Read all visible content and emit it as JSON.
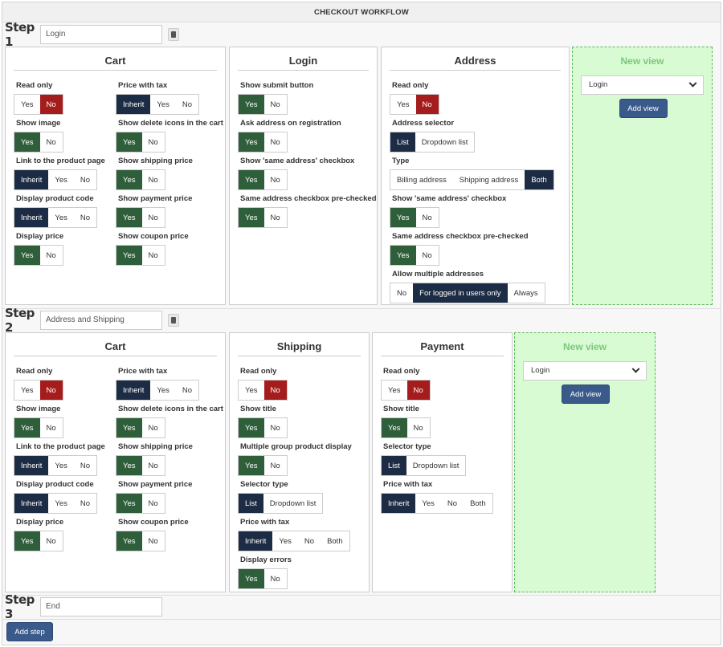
{
  "title": "CHECKOUT WORKFLOW",
  "steps": [
    {
      "label": "Step 1",
      "name": "Login",
      "panels": {
        "cart": {
          "title": "Cart",
          "options": {
            "read_only": {
              "label": "Read only",
              "choices": [
                "Yes",
                "No"
              ]
            },
            "price_with_tax": {
              "label": "Price with tax",
              "choices": [
                "Inherit",
                "Yes",
                "No"
              ]
            },
            "show_image": {
              "label": "Show image",
              "choices": [
                "Yes",
                "No"
              ]
            },
            "show_delete_icons": {
              "label": "Show delete icons in the cart",
              "choices": [
                "Yes",
                "No"
              ]
            },
            "link_product_page": {
              "label": "Link to the product page",
              "choices": [
                "Inherit",
                "Yes",
                "No"
              ]
            },
            "show_shipping_price": {
              "label": "Show shipping price",
              "choices": [
                "Yes",
                "No"
              ]
            },
            "display_product_code": {
              "label": "Display product code",
              "choices": [
                "Inherit",
                "Yes",
                "No"
              ]
            },
            "show_payment_price": {
              "label": "Show payment price",
              "choices": [
                "Yes",
                "No"
              ]
            },
            "display_price": {
              "label": "Display price",
              "choices": [
                "Yes",
                "No"
              ]
            },
            "show_coupon_price": {
              "label": "Show coupon price",
              "choices": [
                "Yes",
                "No"
              ]
            }
          }
        },
        "login": {
          "title": "Login",
          "options": {
            "show_submit_button": {
              "label": "Show submit button",
              "choices": [
                "Yes",
                "No"
              ]
            },
            "ask_address": {
              "label": "Ask address on registration",
              "choices": [
                "Yes",
                "No"
              ]
            },
            "show_same_address": {
              "label": "Show 'same address' checkbox",
              "choices": [
                "Yes",
                "No"
              ]
            },
            "same_address_prechecked": {
              "label": "Same address checkbox pre-checked",
              "choices": [
                "Yes",
                "No"
              ]
            }
          }
        },
        "address": {
          "title": "Address",
          "options": {
            "read_only": {
              "label": "Read only",
              "choices": [
                "Yes",
                "No"
              ]
            },
            "address_selector": {
              "label": "Address selector",
              "choices": [
                "List",
                "Dropdown list"
              ]
            },
            "type": {
              "label": "Type",
              "choices": [
                "Billing address",
                "Shipping address",
                "Both"
              ]
            },
            "show_same_address": {
              "label": "Show 'same address' checkbox",
              "choices": [
                "Yes",
                "No"
              ]
            },
            "same_address_prechecked": {
              "label": "Same address checkbox pre-checked",
              "choices": [
                "Yes",
                "No"
              ]
            },
            "allow_multiple": {
              "label": "Allow multiple addresses",
              "choices": [
                "No",
                "For logged in users only",
                "Always"
              ]
            }
          }
        },
        "new_view": {
          "title": "New view",
          "select_value": "Login",
          "button": "Add view"
        }
      }
    },
    {
      "label": "Step 2",
      "name": "Address and Shipping",
      "panels": {
        "cart": {
          "title": "Cart",
          "options": {
            "read_only": {
              "label": "Read only",
              "choices": [
                "Yes",
                "No"
              ]
            },
            "price_with_tax": {
              "label": "Price with tax",
              "choices": [
                "Inherit",
                "Yes",
                "No"
              ]
            },
            "show_image": {
              "label": "Show image",
              "choices": [
                "Yes",
                "No"
              ]
            },
            "show_delete_icons": {
              "label": "Show delete icons in the cart",
              "choices": [
                "Yes",
                "No"
              ]
            },
            "link_product_page": {
              "label": "Link to the product page",
              "choices": [
                "Inherit",
                "Yes",
                "No"
              ]
            },
            "show_shipping_price": {
              "label": "Show shipping price",
              "choices": [
                "Yes",
                "No"
              ]
            },
            "display_product_code": {
              "label": "Display product code",
              "choices": [
                "Inherit",
                "Yes",
                "No"
              ]
            },
            "show_payment_price": {
              "label": "Show payment price",
              "choices": [
                "Yes",
                "No"
              ]
            },
            "display_price": {
              "label": "Display price",
              "choices": [
                "Yes",
                "No"
              ]
            },
            "show_coupon_price": {
              "label": "Show coupon price",
              "choices": [
                "Yes",
                "No"
              ]
            }
          }
        },
        "shipping": {
          "title": "Shipping",
          "options": {
            "read_only": {
              "label": "Read only",
              "choices": [
                "Yes",
                "No"
              ]
            },
            "show_title": {
              "label": "Show title",
              "choices": [
                "Yes",
                "No"
              ]
            },
            "multiple_group": {
              "label": "Multiple group product display",
              "choices": [
                "Yes",
                "No"
              ]
            },
            "selector_type": {
              "label": "Selector type",
              "choices": [
                "List",
                "Dropdown list"
              ]
            },
            "price_with_tax": {
              "label": "Price with tax",
              "choices": [
                "Inherit",
                "Yes",
                "No",
                "Both"
              ]
            },
            "display_errors": {
              "label": "Display errors",
              "choices": [
                "Yes",
                "No"
              ]
            }
          }
        },
        "payment": {
          "title": "Payment",
          "options": {
            "read_only": {
              "label": "Read only",
              "choices": [
                "Yes",
                "No"
              ]
            },
            "show_title": {
              "label": "Show title",
              "choices": [
                "Yes",
                "No"
              ]
            },
            "selector_type": {
              "label": "Selector type",
              "choices": [
                "List",
                "Dropdown list"
              ]
            },
            "price_with_tax": {
              "label": "Price with tax",
              "choices": [
                "Inherit",
                "Yes",
                "No",
                "Both"
              ]
            }
          }
        },
        "new_view": {
          "title": "New view",
          "select_value": "Login",
          "button": "Add view"
        }
      }
    },
    {
      "label": "Step 3",
      "name": "End"
    }
  ],
  "add_step_button": "Add step",
  "colors": {
    "selected_yes": "#2e5e3a",
    "selected_no": "#a51c1c",
    "selected_neutral": "#1d2c45",
    "new_view_bg": "#d9fbd4",
    "button": "#3a5a8c"
  }
}
